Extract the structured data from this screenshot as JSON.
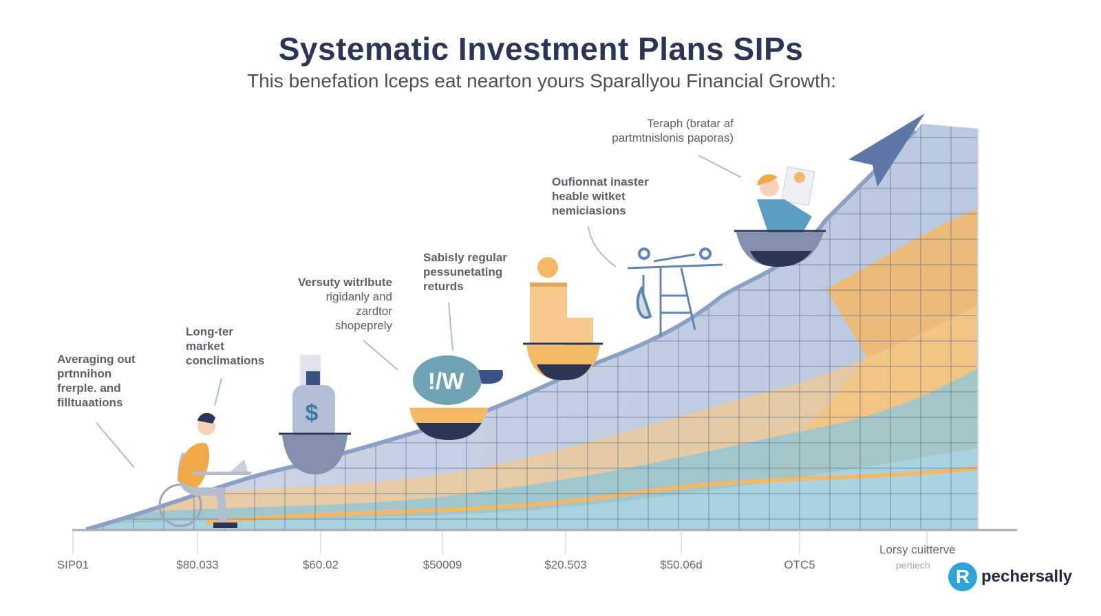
{
  "header": {
    "title": "Systematic Investment Plans SIPs",
    "subtitle": "This benefation lceps eat nearton yours Sparallyou Financial Growth:"
  },
  "annotations": [
    {
      "lines": [
        "Averaging out",
        "prtnnihon",
        "frerple. and",
        "filltuaations"
      ]
    },
    {
      "lines": [
        "Long-ter",
        "market",
        "conclimations"
      ]
    },
    {
      "lines": [
        "Versuty witrlbute",
        "rigidanly and",
        "zardtor",
        "shopeprely"
      ]
    },
    {
      "lines": [
        "Sabisly regular",
        "pessunetating",
        "returds"
      ]
    },
    {
      "lines": [
        "Oufionnat inaster",
        "heable witket",
        "nemiciasions"
      ]
    },
    {
      "lines": [
        "Teraph (bratar af",
        "partmtnislonis paporas)"
      ]
    }
  ],
  "axis": {
    "ticks": [
      "SIP01",
      "$80.033",
      "$60.02",
      "$50009",
      "$20.503",
      "$50.06d",
      "OTC5"
    ],
    "last_label": "Lorsy cuitterve",
    "last_sublabel": "pertiech"
  },
  "brand": {
    "logo_letter": "R",
    "name": "pechersally"
  },
  "colors": {
    "title": "#2b3556",
    "curve": "#8aa0c4",
    "orange": "#f5b867",
    "blue": "#7fc0d2",
    "arrow": "#5e77a6",
    "brand": "#2fa4d9"
  },
  "icons": [
    "person-at-laptop",
    "money-bottle",
    "bowl",
    "building-chart",
    "drone",
    "person-with-chart",
    "growth-arrow"
  ]
}
